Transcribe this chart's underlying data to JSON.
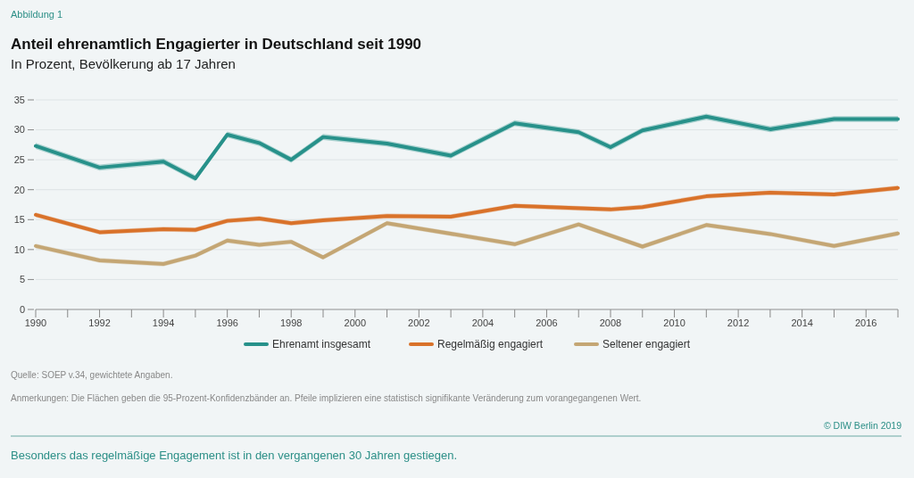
{
  "chart_data": {
    "type": "line",
    "title": "Anteil ehrenamtlich Engagierter in Deutschland seit 1990",
    "subtitle": "In Prozent, Bevölkerung ab 17 Jahren",
    "xlim": [
      1990,
      2017
    ],
    "xticks": [
      1990,
      {
        "value": 1991,
        "label": null
      },
      1992,
      {
        "value": 1993,
        "label": null
      },
      1994,
      {
        "value": 1995,
        "label": null
      },
      1996,
      {
        "value": 1997,
        "label": null
      },
      1998,
      {
        "value": 1999,
        "label": null
      },
      2000,
      {
        "value": 2001,
        "label": null
      },
      2002,
      {
        "value": 2003,
        "label": null
      },
      2004,
      {
        "value": 2005,
        "label": null
      },
      2006,
      {
        "value": 2007,
        "label": null
      },
      2008,
      {
        "value": 2009,
        "label": null
      },
      2010,
      {
        "value": 2011,
        "label": null
      },
      2012,
      {
        "value": 2013,
        "label": null
      },
      2014,
      {
        "value": 2015,
        "label": null
      },
      2016,
      {
        "value": 2017,
        "label": null
      }
    ],
    "ylim": [
      0,
      35
    ],
    "yticks": [
      0,
      5,
      10,
      15,
      20,
      25,
      30,
      35
    ],
    "grid": "y",
    "legend": "bottom",
    "series": [
      {
        "name": "Ehrenamt insgesamt",
        "color": "#27918a",
        "x": [
          1990,
          1992,
          1994,
          1995,
          1996,
          1997,
          1998,
          1999,
          2001,
          2003,
          2005,
          2007,
          2008,
          2009,
          2011,
          2013,
          2015,
          2017
        ],
        "values": [
          27.3,
          23.7,
          24.7,
          21.9,
          29.2,
          27.8,
          25.0,
          28.8,
          27.7,
          25.7,
          31.1,
          29.6,
          27.1,
          29.9,
          32.2,
          30.1,
          31.8,
          31.8
        ],
        "lower": [
          26.8,
          23.2,
          24.2,
          21.4,
          28.7,
          27.3,
          24.5,
          28.3,
          27.2,
          25.2,
          30.6,
          29.1,
          26.6,
          29.4,
          31.7,
          29.6,
          31.3,
          31.3
        ],
        "upper": [
          27.8,
          24.2,
          25.2,
          22.4,
          29.7,
          28.3,
          25.5,
          29.3,
          28.2,
          26.2,
          31.6,
          30.1,
          27.6,
          30.4,
          32.7,
          30.6,
          32.3,
          32.3
        ]
      },
      {
        "name": "Regelmäßig engagiert",
        "color": "#d9722a",
        "x": [
          1990,
          1992,
          1994,
          1995,
          1996,
          1997,
          1998,
          1999,
          2001,
          2003,
          2005,
          2008,
          2009,
          2011,
          2013,
          2015,
          2017
        ],
        "values": [
          15.8,
          12.9,
          13.4,
          13.3,
          14.8,
          15.2,
          14.4,
          14.9,
          15.6,
          15.5,
          17.3,
          16.7,
          17.1,
          18.9,
          19.5,
          19.2,
          20.3
        ],
        "lower": [
          15.4,
          12.5,
          13.0,
          12.9,
          14.4,
          14.8,
          14.0,
          14.5,
          15.2,
          15.1,
          16.9,
          16.3,
          16.7,
          18.5,
          19.1,
          18.8,
          19.9
        ],
        "upper": [
          16.2,
          13.3,
          13.8,
          13.7,
          15.2,
          15.6,
          14.8,
          15.3,
          16.0,
          15.9,
          17.7,
          17.1,
          17.5,
          19.3,
          19.9,
          19.6,
          20.7
        ]
      },
      {
        "name": "Seltener engagiert",
        "color": "#c4a674",
        "x": [
          1990,
          1992,
          1994,
          1995,
          1996,
          1997,
          1998,
          1999,
          2001,
          2005,
          2007,
          2009,
          2011,
          2013,
          2015,
          2017
        ],
        "values": [
          10.6,
          8.2,
          7.6,
          9.0,
          11.5,
          10.8,
          11.3,
          8.7,
          14.4,
          10.9,
          14.2,
          10.5,
          14.1,
          12.6,
          10.6,
          12.7
        ],
        "lower": [
          10.2,
          7.8,
          7.2,
          8.6,
          11.1,
          10.4,
          10.9,
          8.3,
          14.0,
          10.5,
          13.8,
          10.1,
          13.7,
          12.2,
          10.2,
          12.3
        ],
        "upper": [
          11.0,
          8.6,
          8.0,
          9.4,
          11.9,
          11.2,
          11.7,
          9.1,
          14.8,
          11.3,
          14.6,
          10.9,
          14.5,
          13.0,
          11.0,
          13.1
        ]
      }
    ],
    "annotations": [
      "Abbildung 1",
      "Quelle: SOEP v.34, gewichtete Angaben.",
      "Anmerkungen: Die Flächen geben die 95-Prozent-Konfidenzbänder an. Pfeile implizieren eine statistisch signifikante Veränderung zum vorangegangenen Wert.",
      "© DIW Berlin 2019",
      "Besonders das regelmäßige Engagement ist in den vergangenen 30 Jahren gestiegen."
    ]
  }
}
